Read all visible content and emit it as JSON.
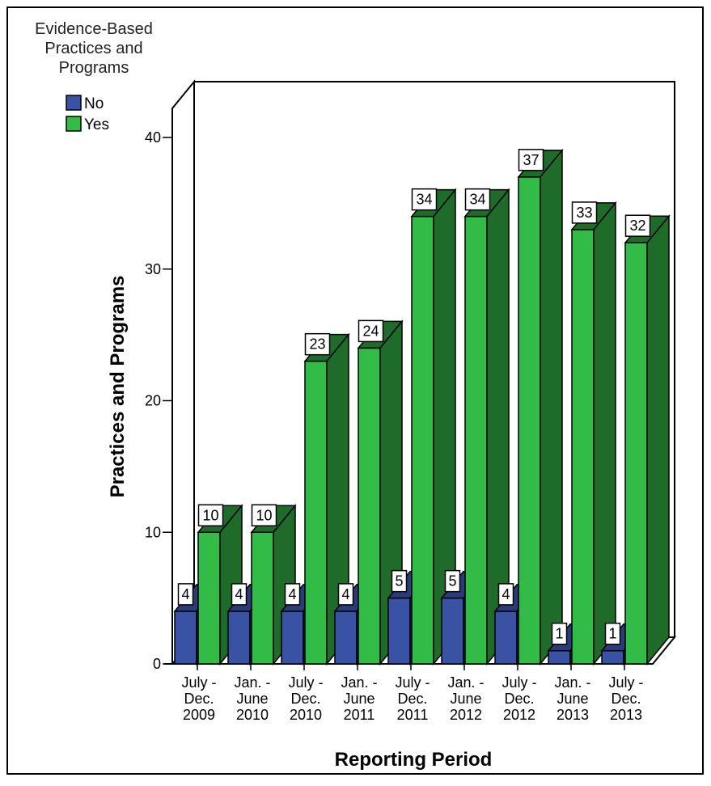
{
  "chart_data": {
    "type": "bar",
    "style": "3d-clustered",
    "xlabel": "Reporting Period",
    "ylabel": "Practices and Programs",
    "ylim": [
      0,
      40
    ],
    "yticks": [
      0,
      10,
      20,
      30,
      40
    ],
    "grid": false,
    "legend": {
      "title_lines": [
        "Evidence-Based",
        "Practices and",
        "Programs"
      ],
      "placement": "top-left"
    },
    "categories": [
      [
        "July -",
        "Dec.",
        "2009"
      ],
      [
        "Jan. -",
        "June",
        "2010"
      ],
      [
        "July -",
        "Dec.",
        "2010"
      ],
      [
        "Jan. -",
        "June",
        "2011"
      ],
      [
        "July -",
        "Dec.",
        "2011"
      ],
      [
        "Jan. -",
        "June",
        "2012"
      ],
      [
        "July -",
        "Dec.",
        "2012"
      ],
      [
        "Jan. -",
        "June",
        "2013"
      ],
      [
        "July -",
        "Dec.",
        "2013"
      ]
    ],
    "series": [
      {
        "name": "No",
        "color": "#3a52a4",
        "side_color": "#2a3b7a",
        "values": [
          4,
          4,
          4,
          4,
          5,
          5,
          4,
          1,
          1
        ]
      },
      {
        "name": "Yes",
        "color": "#33bb47",
        "side_color": "#1f6b2a",
        "values": [
          10,
          10,
          23,
          24,
          34,
          34,
          37,
          33,
          32
        ]
      }
    ]
  }
}
